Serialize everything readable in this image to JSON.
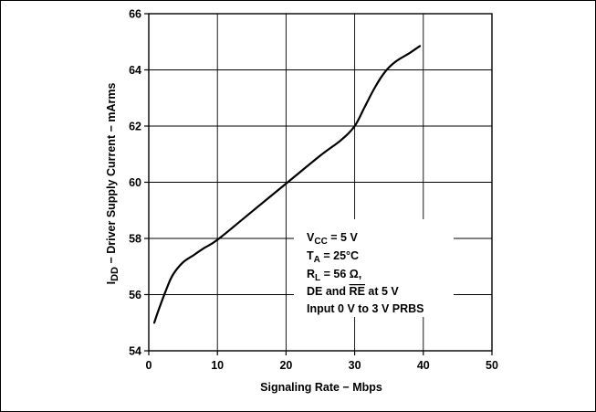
{
  "chart_data": {
    "type": "line",
    "xlabel": "Signaling Rate − Mbps",
    "ylabel_main": "I",
    "ylabel_sub": "DD",
    "ylabel_rest": " − Driver Supply Current − mArms",
    "xlim": [
      0,
      50
    ],
    "ylim": [
      54,
      66
    ],
    "xticks": [
      "0",
      "10",
      "20",
      "30",
      "40",
      "50"
    ],
    "yticks": [
      "54",
      "56",
      "58",
      "60",
      "62",
      "64",
      "66"
    ],
    "grid": true,
    "series": [
      {
        "x": [
          0.8,
          1.5,
          2.5,
          3.5,
          5,
          6.5,
          8,
          10,
          15,
          20,
          25,
          28,
          30,
          31.5,
          33,
          34.5,
          36,
          38,
          39.5
        ],
        "y": [
          55.0,
          55.5,
          56.15,
          56.7,
          57.15,
          57.4,
          57.65,
          57.95,
          58.95,
          59.95,
          60.95,
          61.5,
          62.0,
          62.7,
          63.4,
          63.95,
          64.3,
          64.6,
          64.85
        ]
      }
    ],
    "conditions": {
      "vcc_main": "V",
      "vcc_sub": "CC",
      "vcc_rest": " = 5 V",
      "ta_main": "T",
      "ta_sub": "A",
      "ta_rest": " = 25°C",
      "rl_main": "R",
      "rl_sub": "L",
      "rl_rest": " = 56 Ω,",
      "de_pre": "DE and ",
      "de_over": "RE",
      "de_post": " at 5 V",
      "input": "Input 0 V to 3 V PRBS"
    }
  }
}
